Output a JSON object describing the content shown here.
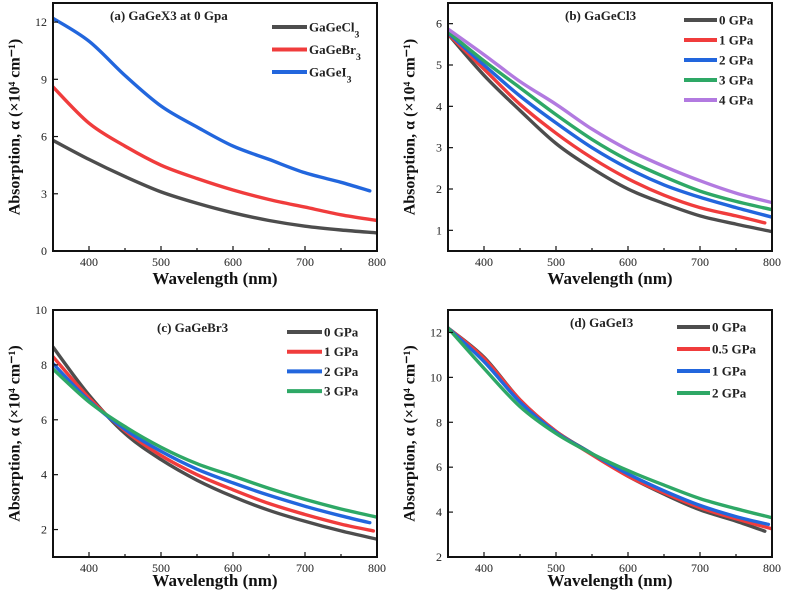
{
  "chart_data": [
    {
      "type": "line",
      "title": "(a) GaGeX3 at 0 Gpa",
      "xlabel": "Wavelength (nm)",
      "ylabel": "Absorption, α (×10⁴ cm⁻¹)",
      "xlim": [
        350,
        800
      ],
      "ylim": [
        0,
        13
      ],
      "xticks": [
        400,
        500,
        600,
        700,
        800
      ],
      "yticks": [
        0,
        3,
        6,
        9,
        12
      ],
      "legend_position": "top-right",
      "grid": false,
      "series": [
        {
          "name": "GaGeCl3",
          "color": "#4d4d4d",
          "x": [
            350,
            400,
            450,
            500,
            550,
            600,
            650,
            700,
            750,
            800
          ],
          "y": [
            5.8,
            4.8,
            3.9,
            3.1,
            2.5,
            2.0,
            1.6,
            1.3,
            1.1,
            0.95
          ]
        },
        {
          "name": "GaGeBr3",
          "color": "#f03c3c",
          "x": [
            350,
            400,
            450,
            500,
            550,
            600,
            650,
            700,
            750,
            800
          ],
          "y": [
            8.6,
            6.7,
            5.5,
            4.5,
            3.8,
            3.2,
            2.7,
            2.3,
            1.9,
            1.6
          ]
        },
        {
          "name": "GaGeI3",
          "color": "#2266dd",
          "x": [
            350,
            400,
            450,
            500,
            550,
            600,
            650,
            700,
            750,
            790
          ],
          "y": [
            12.2,
            11.0,
            9.2,
            7.6,
            6.5,
            5.5,
            4.8,
            4.1,
            3.6,
            3.15
          ]
        }
      ]
    },
    {
      "type": "line",
      "title": "(b) GaGeCl3",
      "xlabel": "Wavelength (nm)",
      "ylabel": "Absorption, α (×10⁴ cm⁻¹)",
      "xlim": [
        350,
        800
      ],
      "ylim": [
        0.5,
        6.5
      ],
      "xticks": [
        400,
        500,
        600,
        700,
        800
      ],
      "yticks": [
        1,
        2,
        3,
        4,
        5,
        6
      ],
      "legend_position": "top-right",
      "grid": false,
      "series": [
        {
          "name": "0 GPa",
          "color": "#4d4d4d",
          "x": [
            350,
            400,
            450,
            500,
            550,
            600,
            650,
            700,
            750,
            800
          ],
          "y": [
            5.75,
            4.75,
            3.9,
            3.1,
            2.5,
            2.0,
            1.65,
            1.35,
            1.15,
            0.97
          ]
        },
        {
          "name": "1 GPa",
          "color": "#f03c3c",
          "x": [
            350,
            400,
            450,
            500,
            550,
            600,
            650,
            700,
            750,
            790
          ],
          "y": [
            5.75,
            4.9,
            4.05,
            3.35,
            2.75,
            2.25,
            1.85,
            1.55,
            1.35,
            1.18
          ]
        },
        {
          "name": "2 GPa",
          "color": "#2266dd",
          "x": [
            350,
            400,
            450,
            500,
            550,
            600,
            650,
            700,
            750,
            800
          ],
          "y": [
            5.78,
            5.0,
            4.25,
            3.6,
            3.0,
            2.5,
            2.1,
            1.8,
            1.55,
            1.32
          ]
        },
        {
          "name": "3 GPa",
          "color": "#2ea866",
          "x": [
            350,
            400,
            450,
            500,
            550,
            600,
            650,
            700,
            750,
            800
          ],
          "y": [
            5.8,
            5.1,
            4.45,
            3.8,
            3.2,
            2.7,
            2.3,
            1.95,
            1.7,
            1.5
          ]
        },
        {
          "name": "4 GPa",
          "color": "#b27ae0",
          "x": [
            350,
            400,
            450,
            500,
            550,
            600,
            650,
            700,
            750,
            800
          ],
          "y": [
            5.87,
            5.25,
            4.6,
            4.05,
            3.45,
            2.95,
            2.55,
            2.2,
            1.9,
            1.67
          ]
        }
      ]
    },
    {
      "type": "line",
      "title": "(c) GaGeBr3",
      "xlabel": "Wavelength (nm)",
      "ylabel": "Absorption, α (×10⁴ cm⁻¹)",
      "xlim": [
        350,
        800
      ],
      "ylim": [
        1,
        10
      ],
      "xticks": [
        400,
        500,
        600,
        700,
        800
      ],
      "yticks": [
        2,
        4,
        6,
        8,
        10
      ],
      "legend_position": "top-right",
      "grid": false,
      "series": [
        {
          "name": "0 GPa",
          "color": "#4d4d4d",
          "x": [
            350,
            400,
            450,
            500,
            550,
            600,
            650,
            700,
            750,
            800
          ],
          "y": [
            8.65,
            6.9,
            5.5,
            4.55,
            3.8,
            3.2,
            2.7,
            2.3,
            1.95,
            1.65
          ]
        },
        {
          "name": "1 GPa",
          "color": "#f03c3c",
          "x": [
            350,
            400,
            450,
            500,
            550,
            600,
            650,
            700,
            750,
            795
          ],
          "y": [
            8.3,
            6.8,
            5.6,
            4.7,
            4.0,
            3.45,
            2.95,
            2.55,
            2.2,
            1.95
          ]
        },
        {
          "name": "2 GPa",
          "color": "#2266dd",
          "x": [
            350,
            400,
            450,
            500,
            550,
            600,
            650,
            700,
            750,
            790
          ],
          "y": [
            8.05,
            6.7,
            5.65,
            4.85,
            4.2,
            3.7,
            3.25,
            2.85,
            2.5,
            2.25
          ]
        },
        {
          "name": "3 GPa",
          "color": "#2ea866",
          "x": [
            350,
            400,
            450,
            500,
            550,
            600,
            650,
            700,
            750,
            800
          ],
          "y": [
            7.85,
            6.65,
            5.75,
            5.0,
            4.4,
            3.95,
            3.5,
            3.1,
            2.75,
            2.45
          ]
        }
      ]
    },
    {
      "type": "line",
      "title": "(d) GaGeI3",
      "xlabel": "Wavelength (nm)",
      "ylabel": "Absorption, α (×10⁴ cm⁻¹)",
      "xlim": [
        350,
        800
      ],
      "ylim": [
        2,
        13
      ],
      "xticks": [
        400,
        500,
        600,
        700,
        800
      ],
      "yticks": [
        2,
        4,
        6,
        8,
        10,
        12
      ],
      "legend_position": "top-right",
      "grid": false,
      "series": [
        {
          "name": "0 GPa",
          "color": "#4d4d4d",
          "x": [
            350,
            400,
            450,
            500,
            550,
            600,
            650,
            700,
            750,
            790
          ],
          "y": [
            12.2,
            10.9,
            9.0,
            7.6,
            6.6,
            5.6,
            4.8,
            4.1,
            3.6,
            3.15
          ]
        },
        {
          "name": "0.5 GPa",
          "color": "#f03c3c",
          "x": [
            350,
            400,
            450,
            500,
            550,
            600,
            650,
            700,
            750,
            800
          ],
          "y": [
            12.2,
            10.85,
            9.0,
            7.6,
            6.55,
            5.6,
            4.85,
            4.2,
            3.7,
            3.25
          ]
        },
        {
          "name": "1 GPa",
          "color": "#2266dd",
          "x": [
            350,
            400,
            450,
            500,
            550,
            600,
            650,
            700,
            750,
            795
          ],
          "y": [
            12.2,
            10.7,
            8.9,
            7.55,
            6.6,
            5.7,
            4.95,
            4.3,
            3.8,
            3.45
          ]
        },
        {
          "name": "2 GPa",
          "color": "#2ea866",
          "x": [
            350,
            400,
            450,
            500,
            550,
            600,
            650,
            700,
            750,
            800
          ],
          "y": [
            12.2,
            10.4,
            8.7,
            7.5,
            6.6,
            5.85,
            5.2,
            4.6,
            4.15,
            3.75
          ]
        }
      ]
    }
  ]
}
